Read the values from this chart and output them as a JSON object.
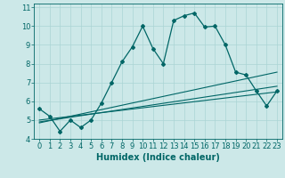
{
  "xlabel": "Humidex (Indice chaleur)",
  "bg_color": "#cce8e8",
  "line_color": "#006666",
  "xlim": [
    -0.5,
    23.5
  ],
  "ylim": [
    4,
    11.2
  ],
  "yticks": [
    4,
    5,
    6,
    7,
    8,
    9,
    10,
    11
  ],
  "xticks": [
    0,
    1,
    2,
    3,
    4,
    5,
    6,
    7,
    8,
    9,
    10,
    11,
    12,
    13,
    14,
    15,
    16,
    17,
    18,
    19,
    20,
    21,
    22,
    23
  ],
  "series1_x": [
    0,
    1,
    2,
    3,
    4,
    5,
    6,
    7,
    8,
    9,
    10,
    11,
    12,
    13,
    14,
    15,
    16,
    17,
    18,
    19,
    20,
    21,
    22,
    23
  ],
  "series1_y": [
    5.6,
    5.2,
    4.4,
    5.0,
    4.6,
    5.0,
    5.9,
    7.0,
    8.1,
    8.9,
    10.0,
    8.8,
    8.0,
    10.3,
    10.55,
    10.7,
    9.95,
    10.0,
    9.0,
    7.55,
    7.4,
    6.55,
    5.75,
    6.55
  ],
  "series2_x": [
    0,
    23
  ],
  "series2_y": [
    5.0,
    6.5
  ],
  "series3_x": [
    0,
    23
  ],
  "series3_y": [
    4.9,
    6.8
  ],
  "series4_x": [
    0,
    23
  ],
  "series4_y": [
    4.85,
    7.55
  ],
  "grid_color": "#aad4d4",
  "xlabel_fontsize": 7,
  "tick_fontsize": 6
}
